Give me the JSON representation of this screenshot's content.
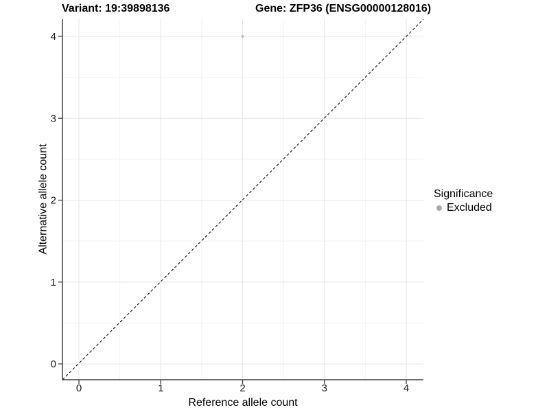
{
  "chart_data": {
    "type": "scatter",
    "titles": [
      "Variant: 19:39898136",
      "Gene: ZFP36 (ENSG00000128016)"
    ],
    "xlabel": "Reference allele count",
    "ylabel": "Alternative allele count",
    "xlim": [
      -0.2,
      4.21
    ],
    "ylim": [
      -0.19,
      4.21
    ],
    "x_ticks": [
      0,
      1,
      2,
      3,
      4
    ],
    "y_ticks": [
      0,
      1,
      2,
      3,
      4
    ],
    "x_minor_gridlines": [
      0.5,
      1.5,
      2.5,
      3.5
    ],
    "y_minor_gridlines": [
      0.5,
      1.5,
      2.5,
      3.5
    ],
    "grid": "major+minor",
    "legend_position": "right",
    "legend": {
      "title": "Significance",
      "items": [
        {
          "label": "Excluded",
          "color": "#aaaaaa",
          "shape": "circle"
        }
      ]
    },
    "series": [
      {
        "name": "Excluded",
        "color": "#c2c2c2",
        "points": [
          {
            "x": 2,
            "y": 4
          }
        ]
      }
    ],
    "reference_line": {
      "kind": "identity",
      "slope": 1,
      "intercept": 0,
      "style": "dashed",
      "color": "#111111"
    }
  },
  "colors": {
    "background": "#ffffff",
    "grid_major": "#e6e6e6",
    "grid_minor": "#f2f2f2",
    "axis_line": "#3f3f3f",
    "tick_mark": "#3f3f3f",
    "text": "#000000"
  }
}
